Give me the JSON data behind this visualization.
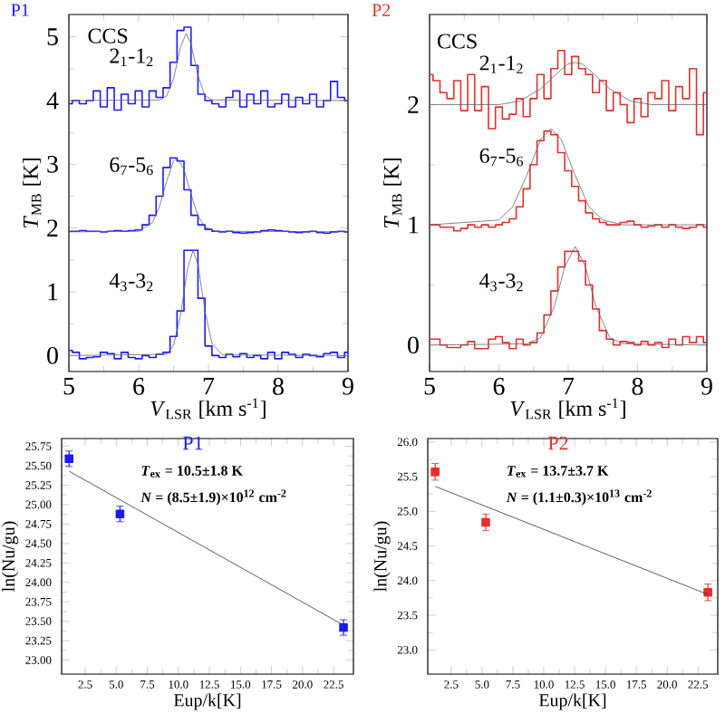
{
  "chart_data": [
    {
      "type": "step",
      "title": "P1",
      "xlabel": "*V*$_{LSR}$ [km s$^{-1}$]",
      "ylabel": "*T*$_{MB}$ [K]",
      "x": [
        5.0,
        5.1,
        5.2,
        5.3,
        5.4,
        5.5,
        5.6,
        5.7,
        5.8,
        5.9,
        6.0,
        6.1,
        6.2,
        6.3,
        6.4,
        6.5,
        6.6,
        6.7,
        6.8,
        6.9,
        7.0,
        7.1,
        7.2,
        7.3,
        7.4,
        7.5,
        7.6,
        7.7,
        7.8,
        7.9,
        8.0,
        8.1,
        8.2,
        8.3,
        8.4,
        8.5,
        8.6,
        8.7,
        8.8,
        8.9,
        9.0
      ],
      "xlim": [
        5,
        9
      ],
      "ylim": [
        -0.25,
        5.35
      ],
      "xticks": [
        5,
        6,
        7,
        8,
        9
      ],
      "yticks": [
        0,
        1,
        2,
        3,
        4,
        5
      ],
      "series": [
        {
          "color": "#1a1aff",
          "values": [
            3.95,
            4.0,
            3.95,
            4.0,
            4.15,
            3.9,
            4.2,
            3.85,
            4.1,
            3.95,
            4.15,
            3.9,
            4.15,
            4.05,
            4.2,
            4.6,
            5.1,
            5.15,
            4.55,
            4.1,
            4.0,
            3.95,
            3.9,
            4.05,
            4.15,
            3.9,
            4.1,
            3.95,
            4.15,
            3.9,
            3.95,
            4.1,
            3.9,
            4.05,
            3.95,
            4.1,
            3.9,
            4.0,
            4.3,
            4.05,
            4.0
          ]
        },
        {
          "color": "#1a1aff",
          "values": [
            1.95,
            1.95,
            1.96,
            1.95,
            1.95,
            1.94,
            1.95,
            1.96,
            1.95,
            1.96,
            1.97,
            2.05,
            2.2,
            2.5,
            2.95,
            3.1,
            3.05,
            2.6,
            2.2,
            2.05,
            1.98,
            1.95,
            1.94,
            1.95,
            1.93,
            1.92,
            1.93,
            1.94,
            1.96,
            1.97,
            1.96,
            1.95,
            1.94,
            1.93,
            1.94,
            1.95,
            1.93,
            1.92,
            1.94,
            1.95,
            1.94
          ]
        },
        {
          "color": "#1a1aff",
          "values": [
            0.08,
            0.05,
            -0.05,
            -0.03,
            -0.02,
            0.05,
            0.03,
            -0.05,
            0.05,
            -0.03,
            -0.05,
            0.0,
            -0.03,
            0.02,
            0.05,
            0.3,
            0.7,
            1.65,
            1.65,
            0.9,
            0.15,
            0.0,
            -0.03,
            0.02,
            -0.02,
            0.03,
            -0.03,
            0.0,
            -0.05,
            0.05,
            -0.05,
            0.05,
            0.02,
            -0.03,
            0.02,
            0.0,
            -0.02,
            0.03,
            0.05,
            -0.03,
            0.05
          ]
        },
        {
          "type": "line",
          "color": "#666666",
          "x": [
            5,
            6.3,
            6.4,
            6.5,
            6.6,
            6.68,
            6.75,
            6.85,
            6.95,
            7.05,
            9
          ],
          "values": [
            4,
            4.01,
            4.07,
            4.34,
            4.84,
            5.05,
            4.89,
            4.39,
            4.08,
            4.01,
            4
          ]
        },
        {
          "type": "line",
          "color": "#666666",
          "x": [
            5,
            6.0,
            6.2,
            6.3,
            6.4,
            6.5,
            6.55,
            6.65,
            6.75,
            6.85,
            6.95,
            7.1,
            9
          ],
          "values": [
            1.94,
            1.95,
            2.09,
            2.34,
            2.73,
            3.05,
            3.1,
            2.92,
            2.53,
            2.19,
            2.02,
            1.95,
            1.94
          ]
        },
        {
          "type": "line",
          "color": "#666666",
          "x": [
            5,
            6.4,
            6.5,
            6.6,
            6.7,
            6.78,
            6.85,
            6.95,
            7.05,
            7.2,
            9
          ],
          "values": [
            0,
            0.02,
            0.16,
            0.63,
            1.36,
            1.65,
            1.43,
            0.7,
            0.19,
            0.01,
            0
          ]
        }
      ],
      "annotations": [
        "CCS",
        "2$_{1}$-1$_{2}$",
        "6$_{7}$-5$_{6}$",
        "4$_{3}$-3$_{2}$"
      ]
    },
    {
      "type": "step",
      "title": "P2",
      "xlabel": "*V*$_{LSR}$ [km s$^{-1}$]",
      "ylabel": "*T*$_{MB}$ [K]",
      "x": [
        5.0,
        5.1,
        5.2,
        5.3,
        5.4,
        5.5,
        5.6,
        5.7,
        5.8,
        5.9,
        6.0,
        6.1,
        6.2,
        6.3,
        6.4,
        6.5,
        6.6,
        6.7,
        6.8,
        6.9,
        7.0,
        7.1,
        7.2,
        7.3,
        7.4,
        7.5,
        7.6,
        7.7,
        7.8,
        7.9,
        8.0,
        8.1,
        8.2,
        8.3,
        8.4,
        8.5,
        8.6,
        8.7,
        8.8,
        8.9,
        9.0
      ],
      "xlim": [
        5,
        9
      ],
      "ylim": [
        -0.22,
        2.75
      ],
      "xticks": [
        5,
        6,
        7,
        8,
        9
      ],
      "yticks": [
        0,
        1,
        2
      ],
      "series": [
        {
          "color": "#e62e2e",
          "values": [
            2.25,
            2.2,
            2.1,
            2.05,
            2.2,
            1.95,
            2.25,
            1.95,
            2.15,
            1.8,
            1.98,
            1.88,
            1.92,
            2.05,
            1.9,
            2.05,
            2.25,
            2.05,
            2.3,
            2.45,
            2.25,
            2.4,
            2.3,
            2.25,
            2.1,
            2.2,
            1.95,
            2.1,
            2.0,
            1.85,
            2.05,
            1.9,
            2.1,
            2.05,
            2.2,
            1.95,
            2.15,
            2.05,
            2.3,
            1.75,
            2.1
          ]
        },
        {
          "color": "#e62e2e",
          "values": [
            1.0,
            1.0,
            0.98,
            0.98,
            0.95,
            0.97,
            1.0,
            0.98,
            1.0,
            0.98,
            1.0,
            1.02,
            1.05,
            1.15,
            1.3,
            1.5,
            1.7,
            1.78,
            1.75,
            1.6,
            1.45,
            1.32,
            1.2,
            1.1,
            1.05,
            1.02,
            1.0,
            1.0,
            1.02,
            1.03,
            1.0,
            0.98,
            0.99,
            1.0,
            0.98,
            1.0,
            0.98,
            0.97,
            0.98,
            1.0,
            0.98
          ]
        },
        {
          "color": "#e62e2e",
          "values": [
            0.05,
            0.05,
            0.0,
            -0.02,
            -0.02,
            0.0,
            0.03,
            -0.03,
            -0.03,
            0.05,
            0.07,
            0.02,
            -0.03,
            0.05,
            0.0,
            0.02,
            0.1,
            0.25,
            0.45,
            0.65,
            0.78,
            0.78,
            0.7,
            0.5,
            0.3,
            0.12,
            0.05,
            0.0,
            0.03,
            0.02,
            0.0,
            0.03,
            0.0,
            0.02,
            -0.02,
            0.05,
            0.0,
            0.07,
            0.02,
            0.07,
            0.02
          ]
        },
        {
          "type": "line",
          "color": "#666666",
          "x": [
            5,
            6.0,
            6.3,
            6.6,
            6.8,
            7.0,
            7.1,
            7.2,
            7.4,
            7.6,
            7.9,
            8.2,
            9
          ],
          "values": [
            2,
            2.0,
            2.03,
            2.13,
            2.24,
            2.34,
            2.35,
            2.34,
            2.24,
            2.13,
            2.03,
            2.0,
            2
          ]
        },
        {
          "type": "line",
          "color": "#666666",
          "x": [
            5,
            6.0,
            6.2,
            6.4,
            6.6,
            6.75,
            6.9,
            7.1,
            7.3,
            7.5,
            7.8,
            9
          ],
          "values": [
            1.0,
            1.04,
            1.15,
            1.41,
            1.71,
            1.8,
            1.71,
            1.41,
            1.15,
            1.04,
            1.0,
            1.0
          ]
        },
        {
          "type": "line",
          "color": "#666666",
          "x": [
            5,
            6.4,
            6.6,
            6.8,
            6.95,
            7.1,
            7.25,
            7.4,
            7.6,
            7.8,
            9
          ],
          "values": [
            0,
            0.01,
            0.06,
            0.32,
            0.65,
            0.82,
            0.65,
            0.32,
            0.06,
            0.01,
            0
          ]
        }
      ],
      "annotations": [
        "CCS",
        "2$_{1}$-1$_{2}$",
        "6$_{7}$-5$_{6}$",
        "4$_{3}$-3$_{2}$"
      ]
    },
    {
      "type": "scatter",
      "title": "P1",
      "xlabel": "Eup/k[K]",
      "ylabel": "ln(Nu/gu)",
      "xlim": [
        0.6,
        24.1
      ],
      "ylim": [
        22.82,
        25.85
      ],
      "xticks": [
        2.5,
        {
          "value": 5,
          "label": "5.0"
        },
        7.5,
        {
          "value": 10,
          "label": "10.0"
        },
        12.5,
        {
          "value": 15,
          "label": "15.0"
        },
        17.5,
        {
          "value": 20,
          "label": "20.0"
        },
        22.5
      ],
      "yticks": [
        {
          "value": 23,
          "label": "23.00"
        },
        23.25,
        {
          "value": 23.5,
          "label": "23.50"
        },
        23.75,
        {
          "value": 24,
          "label": "24.00"
        },
        24.25,
        {
          "value": 24.5,
          "label": "24.50"
        },
        24.75,
        {
          "value": 25,
          "label": "25.00"
        },
        25.25,
        {
          "value": 25.5,
          "label": "25.50"
        },
        25.75
      ],
      "series": [
        {
          "color": "#1a1aff",
          "marker": "square",
          "x": [
            1.2,
            5.3,
            23.3
          ],
          "values": [
            25.59,
            24.88,
            23.42
          ],
          "errors": [
            0.1,
            0.1,
            0.1
          ]
        },
        {
          "type": "line",
          "color": "#333333",
          "x": [
            1.2,
            23.3
          ],
          "values": [
            25.43,
            23.45
          ]
        }
      ],
      "annotations": [
        "*T*$_{ex}$ = 10.5±1.8 K",
        "*N* = (8.5±1.9)×10$^{12}$ cm$^{-2}$"
      ]
    },
    {
      "type": "scatter",
      "title": "P2",
      "xlabel": "Eup/k[K]",
      "ylabel": "ln(Nu/gu)",
      "xlim": [
        0.6,
        24.1
      ],
      "ylim": [
        22.65,
        26.05
      ],
      "xticks": [
        2.5,
        {
          "value": 5,
          "label": "5.0"
        },
        7.5,
        {
          "value": 10,
          "label": "10.0"
        },
        12.5,
        {
          "value": 15,
          "label": "15.0"
        },
        17.5,
        {
          "value": 20,
          "label": "20.0"
        },
        22.5
      ],
      "yticks": [
        {
          "value": 23,
          "label": "23.0"
        },
        23.5,
        {
          "value": 24,
          "label": "24.0"
        },
        24.5,
        {
          "value": 25,
          "label": "25.0"
        },
        25.5,
        {
          "value": 26,
          "label": "26.0"
        }
      ],
      "series": [
        {
          "color": "#e62e2e",
          "marker": "square",
          "x": [
            1.2,
            5.3,
            23.3
          ],
          "values": [
            25.57,
            24.84,
            23.83
          ],
          "errors": [
            0.12,
            0.12,
            0.12
          ]
        },
        {
          "type": "line",
          "color": "#333333",
          "x": [
            1.2,
            23.3
          ],
          "values": [
            25.36,
            23.8
          ]
        }
      ],
      "annotations": [
        "*T*$_{ex}$ = 13.7±3.7 K",
        "*N* = (1.1±0.3)×10$^{13}$ cm$^{-2}$"
      ]
    }
  ]
}
